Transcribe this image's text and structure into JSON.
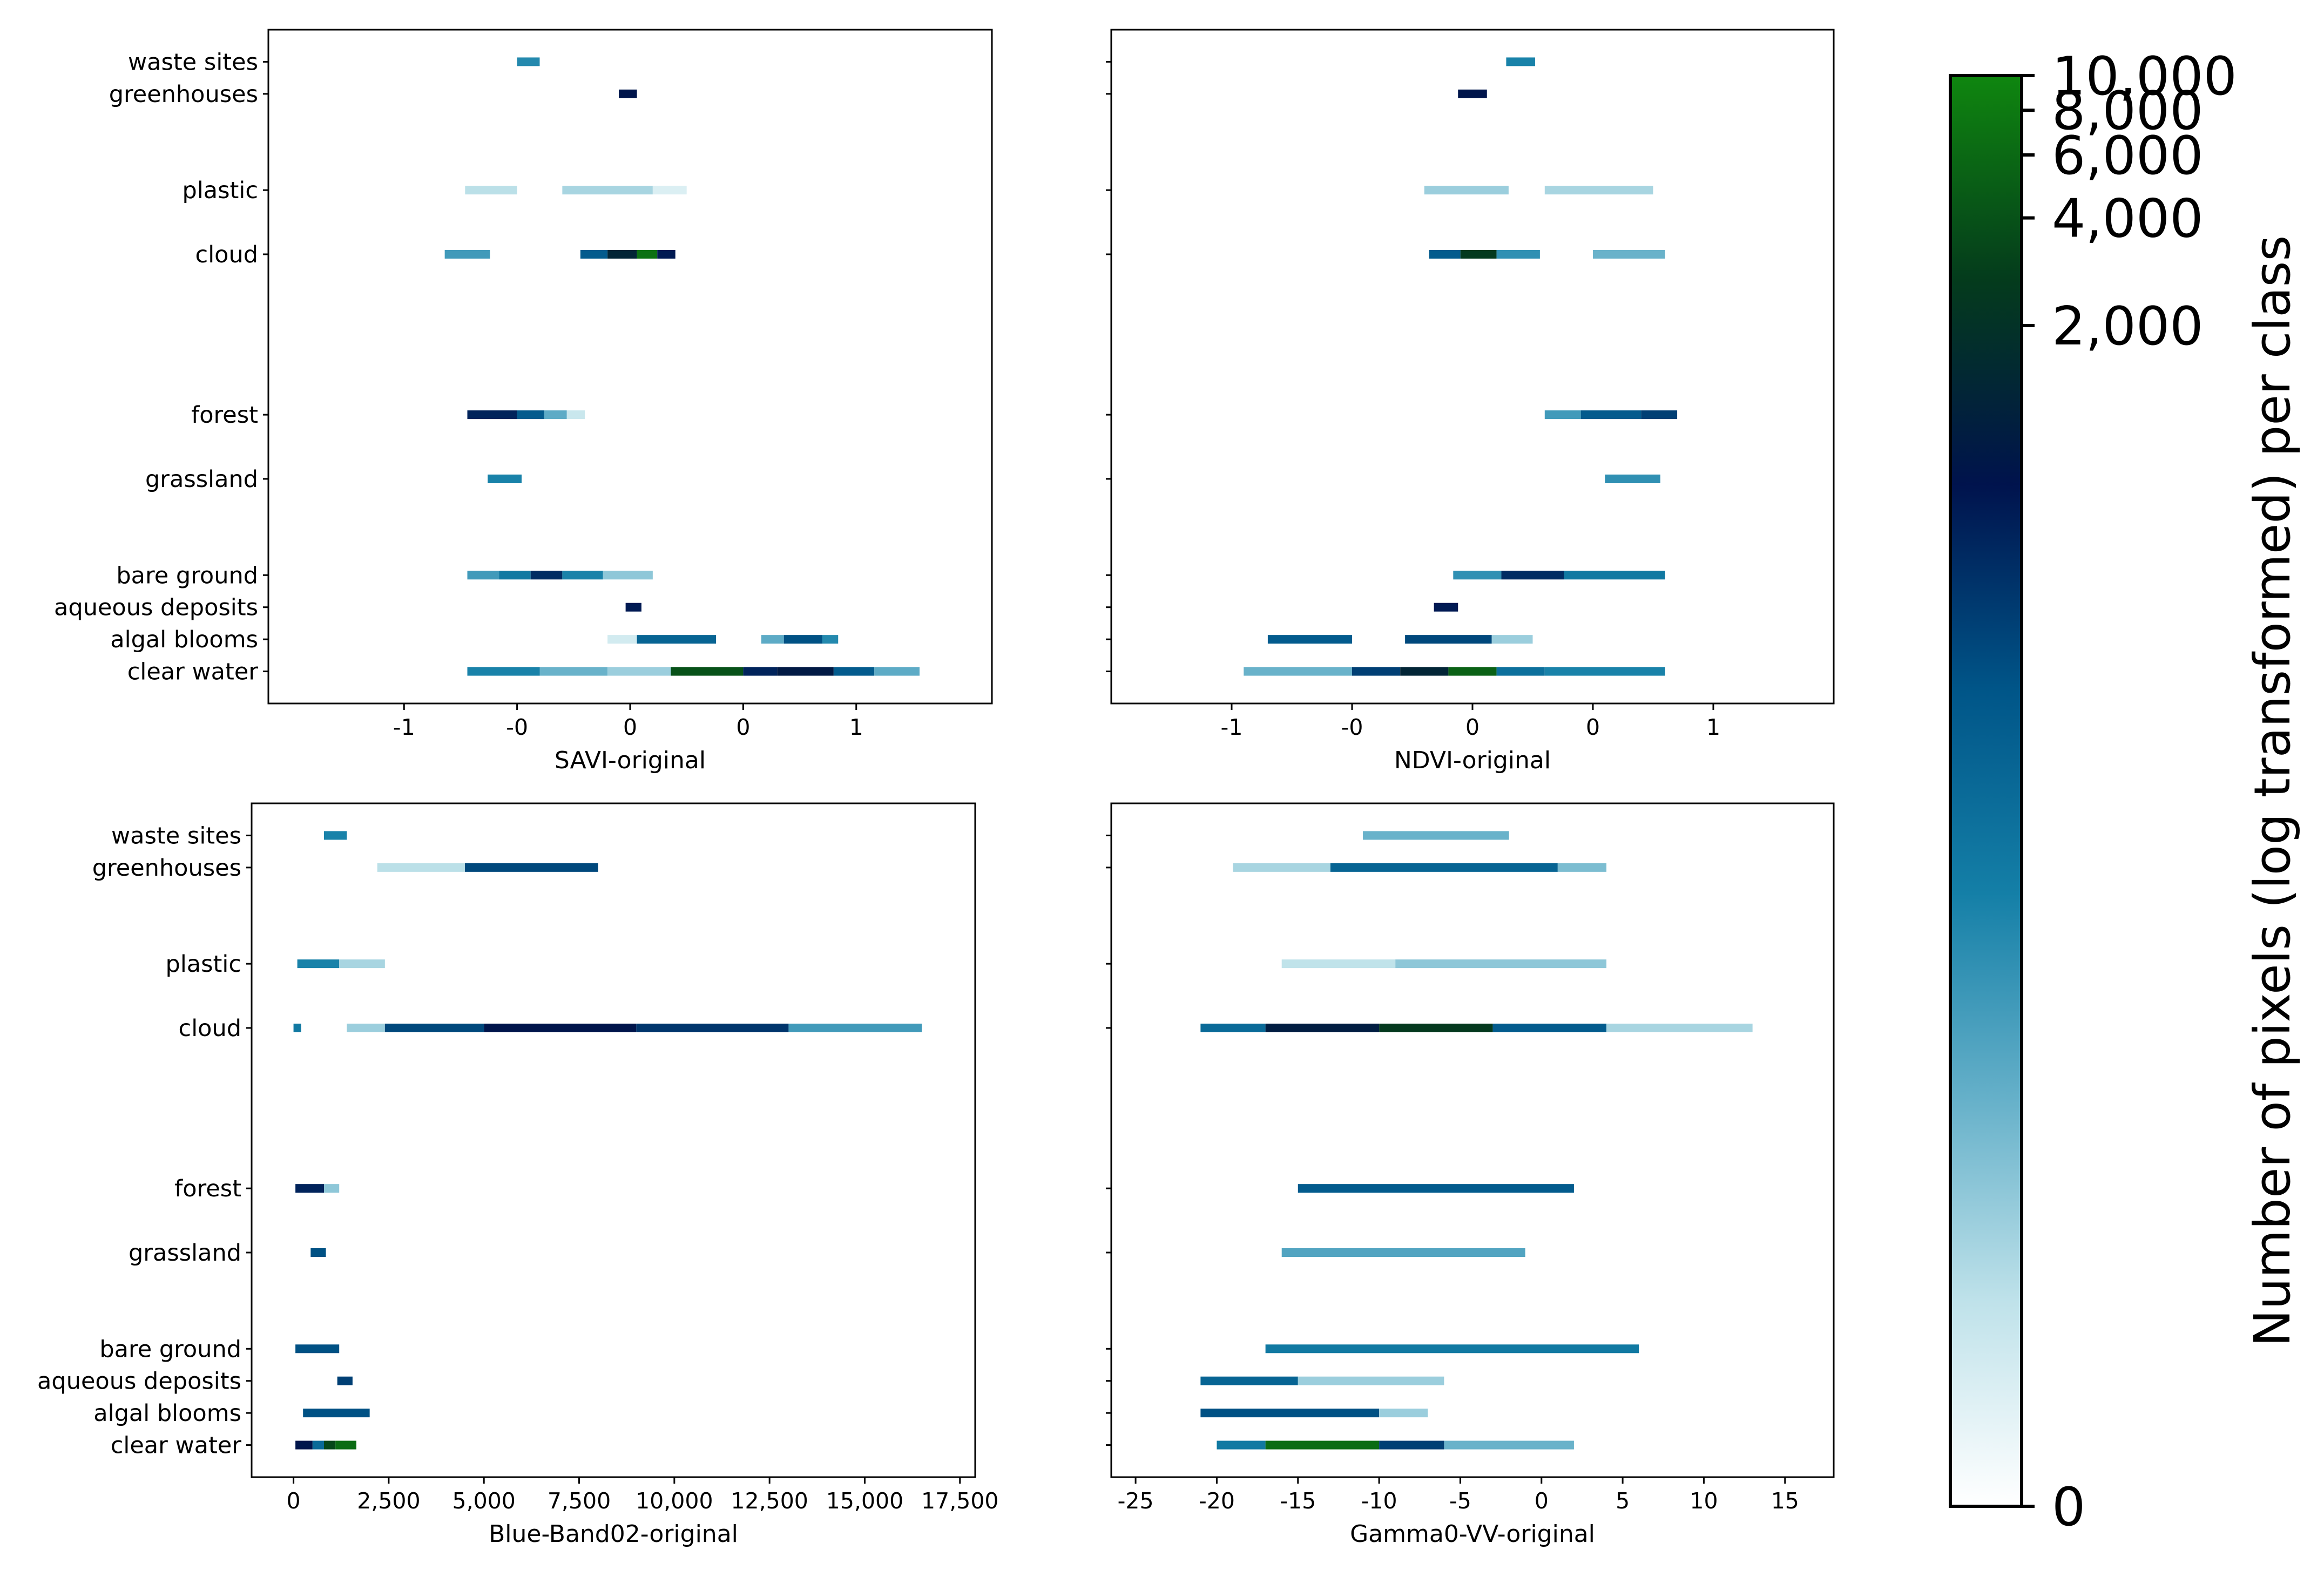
{
  "colormap": {
    "name": "ocean_r (log scale)",
    "stops": [
      "#ffffff",
      "#bfe2ea",
      "#65b0c9",
      "#147fa7",
      "#005588",
      "#00134d",
      "#043b1c",
      "#0f860f"
    ]
  },
  "colorbar": {
    "label": "Number of pixels (log transformed) per class",
    "scale": "log",
    "range": [
      0,
      10000
    ],
    "ticks": [
      {
        "value": 0,
        "label": "0"
      },
      {
        "value": 2000,
        "label": "2,000"
      },
      {
        "value": 4000,
        "label": "4,000"
      },
      {
        "value": 6000,
        "label": "6,000"
      },
      {
        "value": 8000,
        "label": "8,000"
      },
      {
        "value": 10000,
        "label": "10,000"
      }
    ]
  },
  "chart_data": [
    {
      "type": "heatmap",
      "title": "",
      "xlabel": "SAVI-original",
      "ylabel": "",
      "xlim": [
        -1.6,
        1.6
      ],
      "xticks": [
        {
          "value": -1.0,
          "label": "-1"
        },
        {
          "value": -0.5,
          "label": "-0"
        },
        {
          "value": 0.0,
          "label": "0"
        },
        {
          "value": 0.5,
          "label": "0"
        },
        {
          "value": 1.0,
          "label": "1"
        }
      ],
      "categories": [
        {
          "label": "waste sites",
          "y": 15,
          "segments": [
            [
              -0.5,
              -0.4,
              0.4
            ]
          ]
        },
        {
          "label": "greenhouses",
          "y": 14,
          "segments": [
            [
              -0.05,
              0.03,
              0.72
            ]
          ]
        },
        {
          "label": "plastic",
          "y": 11,
          "segments": [
            [
              -0.73,
              -0.5,
              0.15
            ],
            [
              -0.3,
              0.1,
              0.18
            ],
            [
              0.1,
              0.25,
              0.08
            ]
          ]
        },
        {
          "label": "cloud",
          "y": 9,
          "segments": [
            [
              -0.82,
              -0.62,
              0.35
            ],
            [
              -0.22,
              -0.1,
              0.55
            ],
            [
              -0.1,
              0.03,
              0.78
            ],
            [
              0.03,
              0.12,
              0.96
            ],
            [
              0.12,
              0.2,
              0.7
            ]
          ]
        },
        {
          "label": "forest",
          "y": 4,
          "segments": [
            [
              -0.72,
              -0.5,
              0.68
            ],
            [
              -0.5,
              -0.38,
              0.55
            ],
            [
              -0.38,
              -0.28,
              0.3
            ],
            [
              -0.28,
              -0.2,
              0.12
            ]
          ]
        },
        {
          "label": "grassland",
          "y": 2,
          "segments": [
            [
              -0.63,
              -0.48,
              0.42
            ]
          ]
        },
        {
          "label": "bare ground",
          "y": -1,
          "segments": [
            [
              -0.72,
              -0.58,
              0.35
            ],
            [
              -0.58,
              -0.44,
              0.45
            ],
            [
              -0.44,
              -0.3,
              0.66
            ],
            [
              -0.3,
              -0.12,
              0.42
            ],
            [
              -0.12,
              0.1,
              0.22
            ]
          ]
        },
        {
          "label": "aqueous deposits",
          "y": -2,
          "segments": [
            [
              -0.02,
              0.05,
              0.7
            ]
          ]
        },
        {
          "label": "algal blooms",
          "y": -3,
          "segments": [
            [
              -0.1,
              0.03,
              0.1
            ],
            [
              0.03,
              0.38,
              0.52
            ],
            [
              0.58,
              0.68,
              0.3
            ],
            [
              0.68,
              0.85,
              0.58
            ],
            [
              0.85,
              0.92,
              0.4
            ]
          ]
        },
        {
          "label": "clear water",
          "y": -4,
          "segments": [
            [
              -0.72,
              -0.4,
              0.42
            ],
            [
              -0.4,
              -0.1,
              0.28
            ],
            [
              -0.1,
              0.18,
              0.2
            ],
            [
              0.18,
              0.5,
              0.9
            ],
            [
              0.5,
              0.65,
              0.68
            ],
            [
              0.65,
              0.9,
              0.74
            ],
            [
              0.9,
              1.08,
              0.55
            ],
            [
              1.08,
              1.28,
              0.3
            ]
          ]
        }
      ]
    },
    {
      "type": "heatmap",
      "title": "",
      "xlabel": "NDVI-original",
      "ylabel": "",
      "xlim": [
        -1.5,
        1.5
      ],
      "xticks": [
        {
          "value": -1.0,
          "label": "-1"
        },
        {
          "value": -0.5,
          "label": "-0"
        },
        {
          "value": 0.0,
          "label": "0"
        },
        {
          "value": 0.5,
          "label": "0"
        },
        {
          "value": 1.0,
          "label": "1"
        }
      ],
      "categories": [
        {
          "label": "waste sites",
          "y": 15,
          "segments": [
            [
              0.14,
              0.26,
              0.42
            ]
          ]
        },
        {
          "label": "greenhouses",
          "y": 14,
          "segments": [
            [
              -0.06,
              0.06,
              0.72
            ]
          ]
        },
        {
          "label": "plastic",
          "y": 11,
          "segments": [
            [
              -0.2,
              0.15,
              0.2
            ],
            [
              0.3,
              0.75,
              0.18
            ]
          ]
        },
        {
          "label": "cloud",
          "y": 9,
          "segments": [
            [
              -0.18,
              -0.05,
              0.55
            ],
            [
              -0.05,
              0.1,
              0.85
            ],
            [
              0.1,
              0.28,
              0.38
            ],
            [
              0.5,
              0.8,
              0.28
            ]
          ]
        },
        {
          "label": "forest",
          "y": 4,
          "segments": [
            [
              0.3,
              0.45,
              0.35
            ],
            [
              0.45,
              0.7,
              0.55
            ],
            [
              0.7,
              0.85,
              0.62
            ]
          ]
        },
        {
          "label": "grassland",
          "y": 2,
          "segments": [
            [
              0.55,
              0.78,
              0.38
            ]
          ]
        },
        {
          "label": "bare ground",
          "y": -1,
          "segments": [
            [
              -0.08,
              0.12,
              0.38
            ],
            [
              0.12,
              0.38,
              0.66
            ],
            [
              0.38,
              0.8,
              0.45
            ]
          ]
        },
        {
          "label": "aqueous deposits",
          "y": -2,
          "segments": [
            [
              -0.16,
              -0.06,
              0.7
            ]
          ]
        },
        {
          "label": "algal blooms",
          "y": -3,
          "segments": [
            [
              -0.85,
              -0.5,
              0.55
            ],
            [
              -0.28,
              0.08,
              0.6
            ],
            [
              0.08,
              0.25,
              0.2
            ]
          ]
        },
        {
          "label": "clear water",
          "y": -4,
          "segments": [
            [
              -0.95,
              -0.5,
              0.28
            ],
            [
              -0.5,
              -0.3,
              0.62
            ],
            [
              -0.3,
              -0.1,
              0.78
            ],
            [
              -0.1,
              0.1,
              0.93
            ],
            [
              0.1,
              0.3,
              0.48
            ],
            [
              0.3,
              0.8,
              0.42
            ]
          ]
        }
      ]
    },
    {
      "type": "heatmap",
      "title": "",
      "xlabel": "Blue-Band02-original",
      "ylabel": "",
      "xlim": [
        -1100,
        17900
      ],
      "xticks": [
        {
          "value": 0,
          "label": "0"
        },
        {
          "value": 2500,
          "label": "2,500"
        },
        {
          "value": 5000,
          "label": "5,000"
        },
        {
          "value": 7500,
          "label": "7,500"
        },
        {
          "value": 10000,
          "label": "10,000"
        },
        {
          "value": 12500,
          "label": "12,500"
        },
        {
          "value": 15000,
          "label": "15,000"
        },
        {
          "value": 17500,
          "label": "17,500"
        }
      ],
      "categories": [
        {
          "label": "waste sites",
          "y": 15,
          "segments": [
            [
              800,
              1400,
              0.42
            ]
          ]
        },
        {
          "label": "greenhouses",
          "y": 14,
          "segments": [
            [
              2200,
              4500,
              0.15
            ],
            [
              4500,
              8000,
              0.6
            ]
          ]
        },
        {
          "label": "plastic",
          "y": 11,
          "segments": [
            [
              100,
              1200,
              0.42
            ],
            [
              1200,
              2400,
              0.18
            ]
          ]
        },
        {
          "label": "cloud",
          "y": 9,
          "segments": [
            [
              0,
              200,
              0.45
            ],
            [
              1400,
              2400,
              0.2
            ],
            [
              2400,
              5000,
              0.6
            ],
            [
              5000,
              9000,
              0.72
            ],
            [
              9000,
              13000,
              0.64
            ],
            [
              13000,
              16500,
              0.35
            ]
          ]
        },
        {
          "label": "forest",
          "y": 4,
          "segments": [
            [
              50,
              800,
              0.68
            ],
            [
              800,
              1200,
              0.22
            ]
          ]
        },
        {
          "label": "grassland",
          "y": 2,
          "segments": [
            [
              450,
              850,
              0.58
            ]
          ]
        },
        {
          "label": "bare ground",
          "y": -1,
          "segments": [
            [
              50,
              1200,
              0.58
            ]
          ]
        },
        {
          "label": "aqueous deposits",
          "y": -2,
          "segments": [
            [
              1150,
              1550,
              0.62
            ]
          ]
        },
        {
          "label": "algal blooms",
          "y": -3,
          "segments": [
            [
              250,
              2000,
              0.58
            ]
          ]
        },
        {
          "label": "clear water",
          "y": -4,
          "segments": [
            [
              50,
              500,
              0.72
            ],
            [
              500,
              800,
              0.5
            ],
            [
              800,
              1100,
              0.88
            ],
            [
              1100,
              1650,
              0.95
            ]
          ]
        }
      ]
    },
    {
      "type": "heatmap",
      "title": "",
      "xlabel": "Gamma0-VV-original",
      "ylabel": "",
      "xlim": [
        -26.5,
        18
      ],
      "xticks": [
        {
          "value": -25,
          "label": "-25"
        },
        {
          "value": -20,
          "label": "-20"
        },
        {
          "value": -15,
          "label": "-15"
        },
        {
          "value": -10,
          "label": "-10"
        },
        {
          "value": -5,
          "label": "-5"
        },
        {
          "value": 0,
          "label": "0"
        },
        {
          "value": 5,
          "label": "5"
        },
        {
          "value": 10,
          "label": "10"
        },
        {
          "value": 15,
          "label": "15"
        }
      ],
      "categories": [
        {
          "label": "waste sites",
          "y": 15,
          "segments": [
            [
              -11,
              -2,
              0.28
            ]
          ]
        },
        {
          "label": "greenhouses",
          "y": 14,
          "segments": [
            [
              -19,
              -13,
              0.18
            ],
            [
              -13,
              1,
              0.52
            ],
            [
              1,
              4,
              0.25
            ]
          ]
        },
        {
          "label": "plastic",
          "y": 11,
          "segments": [
            [
              -16,
              -9,
              0.14
            ],
            [
              -9,
              4,
              0.22
            ]
          ]
        },
        {
          "label": "cloud",
          "y": 9,
          "segments": [
            [
              -21,
              -17,
              0.5
            ],
            [
              -17,
              -10,
              0.75
            ],
            [
              -10,
              -3,
              0.85
            ],
            [
              -3,
              4,
              0.55
            ],
            [
              4,
              13,
              0.18
            ]
          ]
        },
        {
          "label": "forest",
          "y": 4,
          "segments": [
            [
              -15,
              2,
              0.55
            ]
          ]
        },
        {
          "label": "grassland",
          "y": 2,
          "segments": [
            [
              -16,
              -1,
              0.32
            ]
          ]
        },
        {
          "label": "bare ground",
          "y": -1,
          "segments": [
            [
              -17,
              6,
              0.45
            ]
          ]
        },
        {
          "label": "aqueous deposits",
          "y": -2,
          "segments": [
            [
              -21,
              -15,
              0.52
            ],
            [
              -15,
              -6,
              0.2
            ]
          ]
        },
        {
          "label": "algal blooms",
          "y": -3,
          "segments": [
            [
              -21,
              -10,
              0.58
            ],
            [
              -10,
              -7,
              0.2
            ]
          ]
        },
        {
          "label": "clear water",
          "y": -4,
          "segments": [
            [
              -20,
              -17,
              0.45
            ],
            [
              -17,
              -10,
              0.95
            ],
            [
              -10,
              -6,
              0.62
            ],
            [
              -6,
              2,
              0.28
            ]
          ]
        }
      ]
    }
  ]
}
